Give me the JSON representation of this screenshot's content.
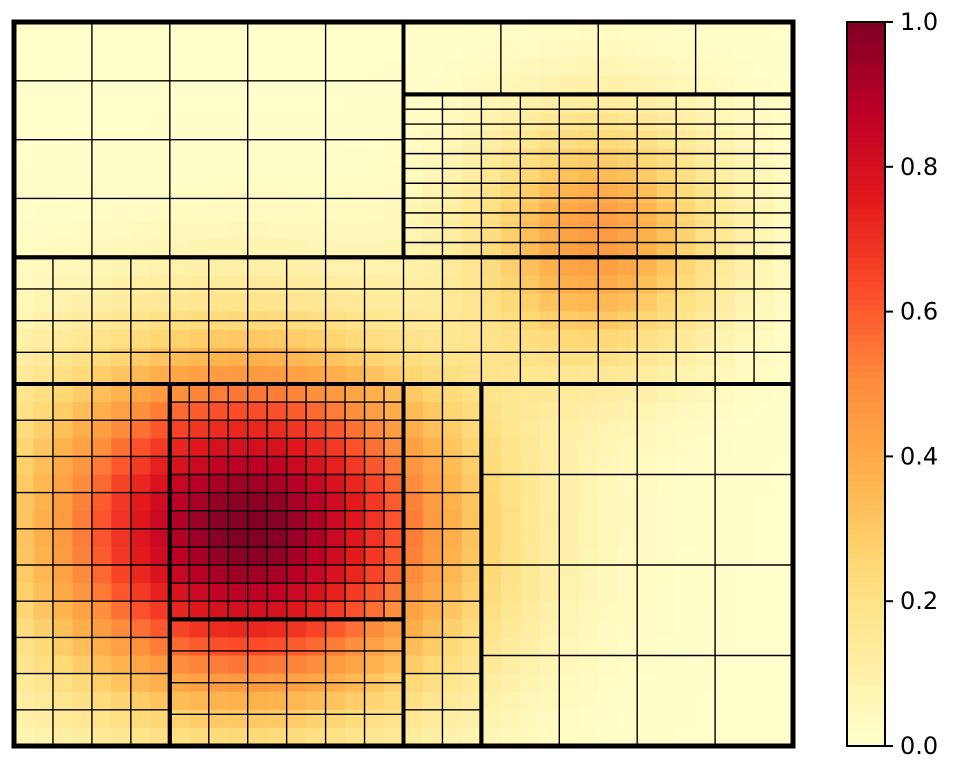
{
  "chart_data": {
    "type": "heatmap",
    "title": "",
    "xlabel": "",
    "ylabel": "",
    "domain": {
      "x": [
        0,
        1
      ],
      "y": [
        0,
        1
      ]
    },
    "field": {
      "description_of_sources": "sum of Gaussian bumps",
      "bumps": [
        {
          "x": 0.3,
          "y": 0.3,
          "amplitude": 1.0,
          "sigma_x": 0.19,
          "sigma_y": 0.17
        },
        {
          "x": 0.75,
          "y": 0.7,
          "amplitude": 0.45,
          "sigma_x": 0.11,
          "sigma_y": 0.12
        }
      ],
      "pixel_resolution": 40
    },
    "colormap": {
      "name": "YlOrRd",
      "stops": [
        "#ffffcc",
        "#ffeda0",
        "#fed976",
        "#feb24c",
        "#fd8d3c",
        "#fc4e2a",
        "#e31a1c",
        "#bd0026",
        "#800026"
      ]
    },
    "colorbar": {
      "range": [
        0.0,
        1.0
      ],
      "ticks": [
        0.0,
        0.2,
        0.4,
        0.6,
        0.8,
        1.0
      ],
      "tick_labels": [
        "0.0",
        "0.2",
        "0.4",
        "0.6",
        "0.8",
        "1.0"
      ]
    },
    "grid": {
      "root_box": {
        "x": [
          0,
          1
        ],
        "y": [
          0,
          1
        ]
      },
      "boxes": [
        {
          "x": [
            0.0,
            0.5
          ],
          "y": [
            0.675,
            1.0
          ],
          "nx": 5,
          "ny": 4
        },
        {
          "x": [
            0.5,
            1.0
          ],
          "y": [
            0.9,
            1.0
          ],
          "nx": 4,
          "ny": 1
        },
        {
          "x": [
            0.5,
            1.0
          ],
          "y": [
            0.675,
            0.9
          ],
          "nx": 10,
          "ny": 11
        },
        {
          "x": [
            0.0,
            1.0
          ],
          "y": [
            0.5,
            0.675
          ],
          "nx": 20,
          "ny": 4
        },
        {
          "x": [
            0.0,
            0.2
          ],
          "y": [
            0.0,
            0.5
          ],
          "nx": 4,
          "ny": 10
        },
        {
          "x": [
            0.2,
            0.5
          ],
          "y": [
            0.175,
            0.5
          ],
          "nx": 12,
          "ny": 13
        },
        {
          "x": [
            0.2,
            0.5
          ],
          "y": [
            0.0,
            0.175
          ],
          "nx": 6,
          "ny": 4
        },
        {
          "x": [
            0.5,
            0.6
          ],
          "y": [
            0.0,
            0.5
          ],
          "nx": 2,
          "ny": 10
        },
        {
          "x": [
            0.6,
            1.0
          ],
          "y": [
            0.0,
            0.5
          ],
          "nx": 4,
          "ny": 4
        }
      ]
    }
  }
}
